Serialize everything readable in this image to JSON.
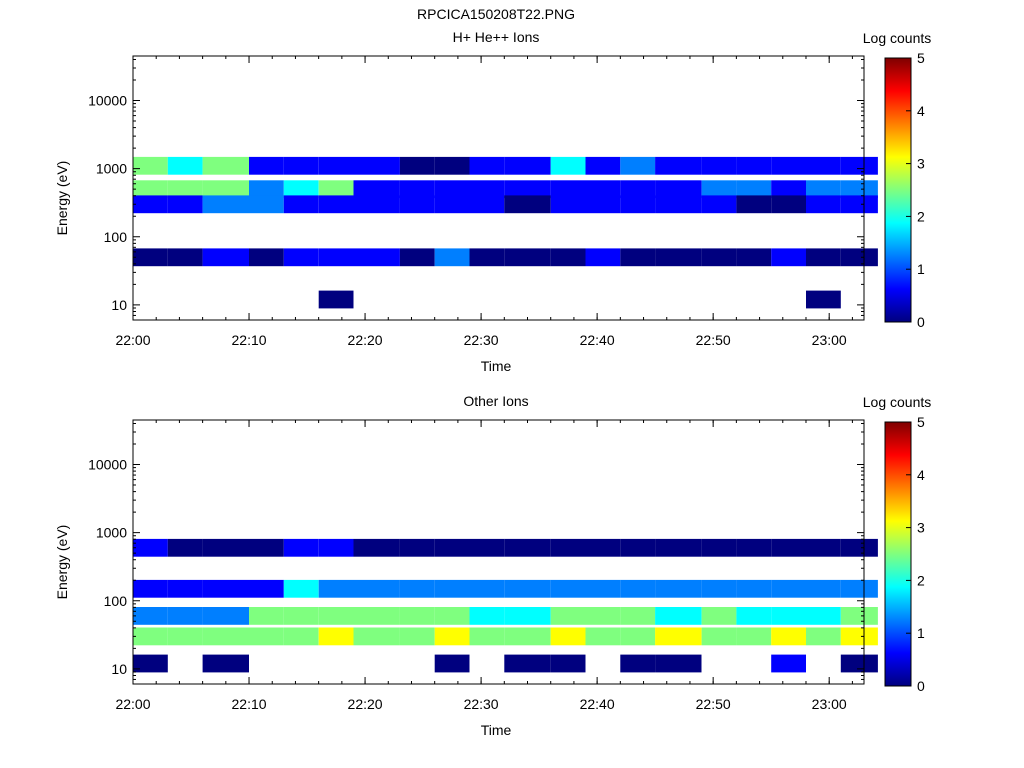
{
  "figure_title": "RPCICA150208T22.PNG",
  "colorscale": [
    "#00007f",
    "#0000ff",
    "#007fff",
    "#00ffff",
    "#7fff7f",
    "#ffff00",
    "#ff7f00",
    "#ff0000",
    "#7f0000"
  ],
  "chart_data": [
    {
      "type": "heatmap",
      "title": "H+ He++ Ions",
      "xlabel": "Time",
      "ylabel": "Energy (eV)",
      "yscale": "log",
      "ylim": [
        6,
        45000
      ],
      "xlim": [
        "22:00",
        "23:03"
      ],
      "x_ticks": [
        "22:00",
        "22:10",
        "22:20",
        "22:30",
        "22:40",
        "22:50",
        "23:00"
      ],
      "y_ticks": [
        "10",
        "100",
        "1000",
        "10000"
      ],
      "time_bins": [
        "22:00",
        "22:03",
        "22:06",
        "22:10",
        "22:13",
        "22:16",
        "22:19",
        "22:23",
        "22:26",
        "22:29",
        "22:32",
        "22:36",
        "22:39",
        "22:42",
        "22:45",
        "22:49",
        "22:52",
        "22:55",
        "22:58",
        "23:01"
      ],
      "colorbar": {
        "label": "Log counts",
        "range": [
          0,
          5
        ],
        "ticks": [
          "0",
          "1",
          "2",
          "3",
          "4",
          "5"
        ]
      },
      "bands": [
        {
          "energy_eV": 500,
          "values": [
            2.7,
            2.5,
            2.6,
            1.5,
            1.8,
            2.2,
            0.8,
            0.6,
            0.5,
            0.4,
            0.5,
            0.6,
            0.5,
            0.9,
            0.6,
            1.0,
            1.1,
            0.9,
            1.0,
            1.2
          ]
        },
        {
          "energy_eV": 1100,
          "values": [
            2.4,
            1.6,
            2.3,
            0.5,
            0.5,
            0.8,
            0.4,
            0.3,
            0.3,
            0.4,
            0.5,
            1.7,
            0.4,
            1.5,
            0.4,
            0.5,
            0.5,
            0.4,
            0.5,
            0.5
          ]
        },
        {
          "energy_eV": 300,
          "values": [
            0.8,
            0.5,
            1.0,
            1.2,
            0.6,
            0.9,
            0.5,
            0.4,
            0.4,
            0.5,
            0.3,
            0.4,
            0.4,
            0.5,
            0.4,
            0.4,
            0.3,
            0.3,
            0.4,
            0.4
          ]
        },
        {
          "energy_eV": 50,
          "values": [
            0.3,
            0.3,
            0.4,
            0.3,
            0.5,
            0.6,
            0.4,
            0.3,
            1.2,
            0.3,
            0.3,
            0.3,
            0.4,
            0.3,
            0.3,
            0.3,
            0.3,
            0.4,
            0.3,
            0.3
          ]
        },
        {
          "energy_eV": 12,
          "values": [
            0,
            0,
            0,
            0,
            0,
            0.3,
            0,
            0,
            0,
            0,
            0,
            0,
            0,
            0,
            0,
            0,
            0,
            0,
            0.3,
            0
          ]
        }
      ]
    },
    {
      "type": "heatmap",
      "title": "Other Ions",
      "xlabel": "Time",
      "ylabel": "Energy (eV)",
      "yscale": "log",
      "ylim": [
        6,
        45000
      ],
      "xlim": [
        "22:00",
        "23:03"
      ],
      "x_ticks": [
        "22:00",
        "22:10",
        "22:20",
        "22:30",
        "22:40",
        "22:50",
        "23:00"
      ],
      "y_ticks": [
        "10",
        "100",
        "1000",
        "10000"
      ],
      "time_bins": [
        "22:00",
        "22:03",
        "22:06",
        "22:10",
        "22:13",
        "22:16",
        "22:19",
        "22:23",
        "22:26",
        "22:29",
        "22:32",
        "22:36",
        "22:39",
        "22:42",
        "22:45",
        "22:49",
        "22:52",
        "22:55",
        "22:58",
        "23:01"
      ],
      "colorbar": {
        "label": "Log counts",
        "range": [
          0,
          5
        ],
        "ticks": [
          "0",
          "1",
          "2",
          "3",
          "4",
          "5"
        ]
      },
      "bands": [
        {
          "energy_eV": 30,
          "values": [
            2.4,
            2.3,
            2.4,
            2.6,
            2.8,
            2.9,
            2.8,
            2.7,
            3.0,
            2.6,
            2.8,
            2.9,
            2.8,
            2.7,
            2.9,
            2.8,
            2.7,
            3.2,
            2.8,
            3.0
          ]
        },
        {
          "energy_eV": 60,
          "values": [
            1.2,
            1.0,
            1.3,
            2.2,
            2.6,
            2.5,
            2.4,
            2.2,
            2.3,
            2.0,
            2.1,
            2.2,
            2.2,
            2.3,
            2.1,
            2.2,
            2.1,
            2.0,
            2.1,
            2.2
          ]
        },
        {
          "energy_eV": 150,
          "values": [
            0.8,
            0.5,
            0.5,
            0.8,
            1.6,
            1.5,
            1.3,
            1.2,
            1.4,
            1.1,
            1.2,
            1.3,
            1.2,
            1.3,
            1.2,
            1.2,
            1.1,
            1.2,
            1.3,
            1.4
          ]
        },
        {
          "energy_eV": 600,
          "values": [
            0.4,
            0.3,
            0.3,
            0.3,
            0.4,
            0.6,
            0.3,
            0.3,
            0.3,
            0.3,
            0.3,
            0.3,
            0.3,
            0.3,
            0.3,
            0.3,
            0.3,
            0.3,
            0.3,
            0.3
          ]
        },
        {
          "energy_eV": 12,
          "values": [
            0.2,
            0,
            0.2,
            0,
            0,
            0,
            0,
            0,
            0.2,
            0,
            0.1,
            0.1,
            0,
            0.1,
            0.1,
            0,
            0,
            0.6,
            0,
            0.3
          ]
        }
      ]
    }
  ]
}
